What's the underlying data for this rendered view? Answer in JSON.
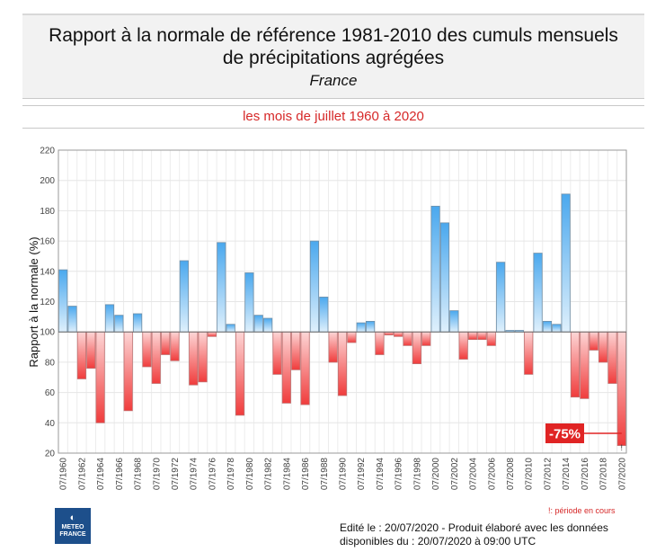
{
  "header": {
    "title_line1": "Rapport à la normale de référence 1981-2010 des cumuls mensuels",
    "title_line2": "de précipitations agrégées",
    "region": "France",
    "subtitle": "les mois de juillet 1960 à 2020"
  },
  "colors": {
    "above_normal": "#4aa8ee",
    "below_normal": "#f03c3c",
    "annotation": "#e02424"
  },
  "footer": {
    "legend_note": "!: période en cours",
    "logo_line1": "METEO",
    "logo_line2": "FRANCE",
    "edited_line1": "Edité le : 20/07/2020 - Produit élaboré avec les données",
    "edited_line2": "disponibles du : 20/07/2020 à 09:00 UTC"
  },
  "chart_data": {
    "type": "bar",
    "title": "Rapport à la normale de référence 1981-2010 des cumuls mensuels de précipitations agrégées",
    "subtitle": "les mois de juillet 1960 à 2020",
    "xlabel": "",
    "ylabel": "Rapport à la normale (%)",
    "ylim": [
      20,
      220
    ],
    "yticks": [
      20,
      40,
      60,
      80,
      100,
      120,
      140,
      160,
      180,
      200,
      220
    ],
    "baseline": 100,
    "grid": true,
    "categories": [
      "07/1960",
      "07/1961",
      "07/1962",
      "07/1963",
      "07/1964",
      "07/1965",
      "07/1966",
      "07/1967",
      "07/1968",
      "07/1969",
      "07/1970",
      "07/1971",
      "07/1972",
      "07/1973",
      "07/1974",
      "07/1975",
      "07/1976",
      "07/1977",
      "07/1978",
      "07/1979",
      "07/1980",
      "07/1981",
      "07/1982",
      "07/1983",
      "07/1984",
      "07/1985",
      "07/1986",
      "07/1987",
      "07/1988",
      "07/1989",
      "07/1990",
      "07/1991",
      "07/1992",
      "07/1993",
      "07/1994",
      "07/1995",
      "07/1996",
      "07/1997",
      "07/1998",
      "07/1999",
      "07/2000",
      "07/2001",
      "07/2002",
      "07/2003",
      "07/2004",
      "07/2005",
      "07/2006",
      "07/2007",
      "07/2008",
      "07/2009",
      "07/2010",
      "07/2011",
      "07/2012",
      "07/2013",
      "07/2014",
      "07/2015",
      "07/2016",
      "07/2017",
      "07/2018",
      "07/2019",
      "07/2020"
    ],
    "tick_labels_every": 2,
    "values": [
      141,
      117,
      69,
      76,
      40,
      118,
      111,
      48,
      112,
      77,
      66,
      85,
      81,
      147,
      65,
      67,
      97,
      159,
      105,
      45,
      139,
      111,
      109,
      72,
      53,
      75,
      52,
      160,
      123,
      80,
      58,
      93,
      106,
      107,
      85,
      98,
      97,
      91,
      79,
      91,
      183,
      172,
      114,
      82,
      95,
      95,
      91,
      146,
      101,
      101,
      72,
      152,
      107,
      105,
      191,
      57,
      56,
      88,
      80,
      66,
      25
    ],
    "annotations": [
      {
        "category": "07/2020",
        "text": "-75%"
      },
      {
        "category": "07/2020",
        "text": "!"
      }
    ]
  }
}
